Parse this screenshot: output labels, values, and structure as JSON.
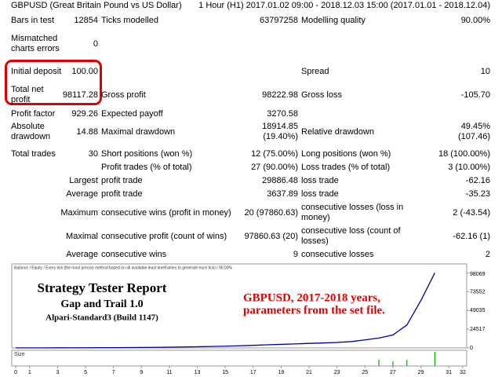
{
  "report": {
    "rows": [
      [
        "GBPUSD (Great Britain Pound vs US Dollar)",
        "1 Hour (H1) 2017.01.02 09:00 - 2018.12.03 15:00 (2017.01.01 - 2018.12.04)"
      ],
      [
        "Bars in test",
        "12854",
        "Ticks modelled",
        "63797258",
        "Modelling quality",
        "90.00%"
      ],
      [
        "Mismatched charts errors",
        "0"
      ],
      [
        "Initial deposit",
        "100.00",
        "Spread",
        "10"
      ],
      [
        "Total net profit",
        "98117.28",
        "Gross profit",
        "98222.98",
        "Gross loss",
        "-105.70"
      ],
      [
        "Profit factor",
        "929.26",
        "Expected payoff",
        "3270.58"
      ],
      [
        "Absolute drawdown",
        "14.88",
        "Maximal drawdown",
        "18914.85 (19.40%)",
        "Relative drawdown",
        "49.45% (107.46)"
      ],
      [
        "Total trades",
        "30",
        "Short positions (won %)",
        "12 (75.00%)",
        "Long positions (won %)",
        "18 (100.00%)"
      ],
      [
        "Profit trades (% of total)",
        "27 (90.00%)",
        "Loss trades (% of total)",
        "3 (10.00%)"
      ],
      [
        "Largest",
        "profit trade",
        "29886.48",
        "loss trade",
        "-62.16"
      ],
      [
        "Average",
        "profit trade",
        "3637.89",
        "loss trade",
        "-35.23"
      ],
      [
        "Maximum",
        "consecutive wins (profit in money)",
        "20 (97860.63)",
        "consecutive losses (loss in money)",
        "2 (-43.54)"
      ],
      [
        "Maximal",
        "consecutive profit (count of wins)",
        "97860.63 (20)",
        "consecutive loss (count of losses)",
        "-62.16 (1)"
      ],
      [
        "Average",
        "consecutive wins",
        "9",
        "consecutive losses",
        "2"
      ]
    ]
  },
  "chart_data": {
    "type": "line",
    "legend": "Balance / Equity / Every tick (the most precise method based on all available least timeframes to generate each tick) / 90.00%",
    "x": [
      0,
      1,
      2,
      3,
      4,
      5,
      6,
      7,
      8,
      9,
      10,
      11,
      12,
      13,
      14,
      15,
      16,
      17,
      18,
      19,
      20,
      21,
      22,
      23,
      24,
      25,
      26,
      27,
      28,
      29,
      30
    ],
    "series": [
      {
        "name": "Balance",
        "color": "#0000a0",
        "values": [
          100,
          120,
          150,
          180,
          220,
          280,
          350,
          420,
          520,
          650,
          800,
          1000,
          1250,
          1550,
          1900,
          2300,
          2800,
          3400,
          4100,
          4700,
          5300,
          6000,
          6500,
          7200,
          8300,
          10500,
          13000,
          17000,
          30000,
          62000,
          98217.28
        ]
      }
    ],
    "xlim": [
      0,
      32
    ],
    "xticks": [
      0,
      1,
      3,
      5,
      7,
      9,
      11,
      13,
      15,
      17,
      19,
      21,
      23,
      25,
      27,
      29,
      31,
      32
    ],
    "ylim": [
      0,
      110000
    ],
    "yticks": [
      0,
      24517,
      49035,
      73552,
      98069
    ],
    "size_panel": {
      "label": "Size",
      "x": [
        26,
        27,
        28,
        30
      ],
      "values": [
        0.4,
        0.3,
        0.4,
        0.9
      ],
      "ylim": [
        0,
        1
      ],
      "color": "#00b000"
    }
  },
  "overlay": {
    "title": "Strategy Tester Report",
    "subtitle": "Gap and Trail 1.0",
    "build": "Alpari-Standard3 (Build 1147)",
    "note": [
      "GBPUSD,  2017-2018 years,",
      "parameters from the set file."
    ]
  }
}
